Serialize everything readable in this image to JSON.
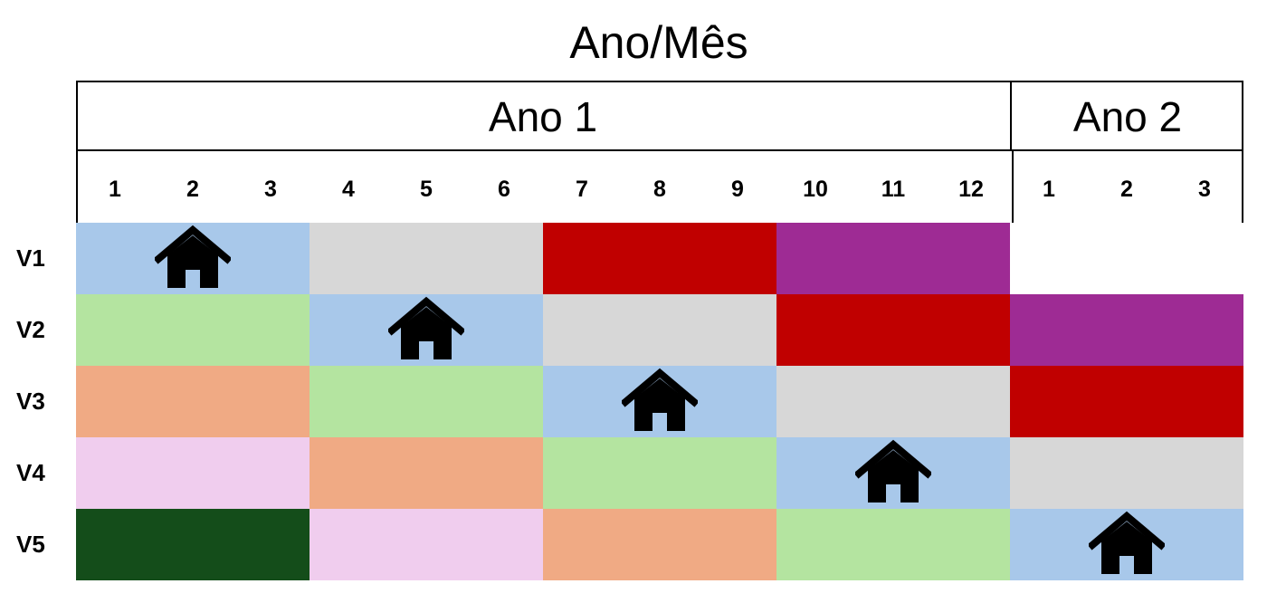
{
  "title": "Ano/Mês",
  "years": [
    {
      "label": "Ano 1",
      "months": 12
    },
    {
      "label": "Ano 2",
      "months": 3
    }
  ],
  "months": [
    "1",
    "2",
    "3",
    "4",
    "5",
    "6",
    "7",
    "8",
    "9",
    "10",
    "11",
    "12",
    "1",
    "2",
    "3"
  ],
  "colors": {
    "blue": "#a8c8ea",
    "gray": "#d7d7d7",
    "red": "#c00000",
    "purple": "#9e2b94",
    "green": "#b4e4a0",
    "orange": "#f0aa84",
    "pink": "#f0cdee",
    "darkgreen": "#144d1a",
    "white": "#ffffff"
  },
  "rows": [
    {
      "label": "V1",
      "blocks": [
        "blue",
        "gray",
        "red",
        "purple",
        "white"
      ],
      "home_block": 0
    },
    {
      "label": "V2",
      "blocks": [
        "green",
        "blue",
        "gray",
        "red",
        "purple"
      ],
      "home_block": 1
    },
    {
      "label": "V3",
      "blocks": [
        "orange",
        "green",
        "blue",
        "gray",
        "red"
      ],
      "home_block": 2
    },
    {
      "label": "V4",
      "blocks": [
        "pink",
        "orange",
        "green",
        "blue",
        "gray"
      ],
      "home_block": 3
    },
    {
      "label": "V5",
      "blocks": [
        "darkgreen",
        "pink",
        "orange",
        "green",
        "blue"
      ],
      "home_block": 4
    }
  ],
  "home_icon": "home-icon"
}
